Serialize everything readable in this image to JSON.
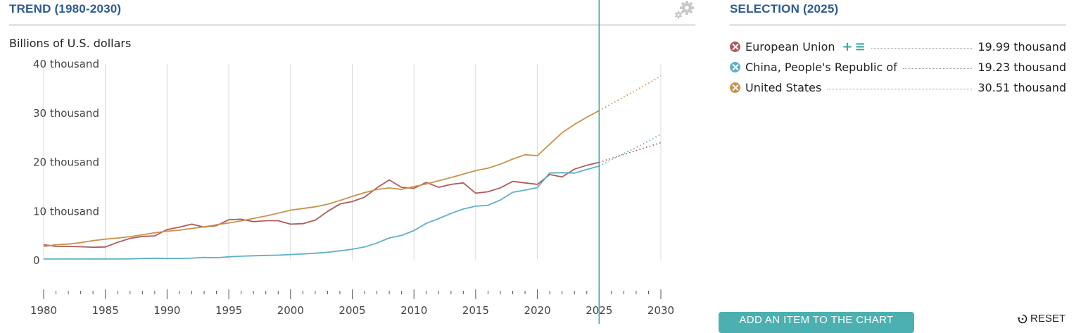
{
  "header": {
    "trend_title": "TREND (1980-2030)",
    "selection_title": "SELECTION (2025)",
    "unit_label": "Billions of U.S. dollars"
  },
  "controls": {
    "add_item_label": "ADD AN ITEM TO THE CHART",
    "reset_label": "RESET",
    "add_icon": "+",
    "list_icon": "≡"
  },
  "legend": [
    {
      "name": "European Union",
      "value": "19.99 thousand",
      "color": "#b05a5a",
      "has_tools": true
    },
    {
      "name": "China, People's Republic of",
      "value": "19.23 thousand",
      "color": "#5eb0c8",
      "has_tools": false
    },
    {
      "name": "United States",
      "value": "30.51 thousand",
      "color": "#c9924a",
      "has_tools": false
    }
  ],
  "chart_data": {
    "type": "line",
    "xlabel": "",
    "ylabel": "Billions of U.S. dollars",
    "xlim": [
      1980,
      2030
    ],
    "ylim": [
      0,
      40000
    ],
    "y_ticks": [
      0,
      10000,
      20000,
      30000,
      40000
    ],
    "y_tick_labels": [
      "0",
      "10 thousand",
      "20 thousand",
      "30 thousand",
      "40 thousand"
    ],
    "x_ticks": [
      1980,
      1985,
      1990,
      1995,
      2000,
      2005,
      2010,
      2015,
      2020,
      2025,
      2030
    ],
    "x_tick_labels": [
      "1980",
      "1985",
      "1990",
      "1995",
      "2000",
      "2005",
      "2010",
      "2015",
      "2020",
      "2025",
      "2030"
    ],
    "selected_year": 2025,
    "projection_from": 2025,
    "grid": "vertical",
    "series": [
      {
        "name": "European Union",
        "color": "#b05a5a",
        "x": [
          1980,
          1981,
          1982,
          1983,
          1984,
          1985,
          1986,
          1987,
          1988,
          1989,
          1990,
          1991,
          1992,
          1993,
          1994,
          1995,
          1996,
          1997,
          1998,
          1999,
          2000,
          2001,
          2002,
          2003,
          2004,
          2005,
          2006,
          2007,
          2008,
          2009,
          2010,
          2011,
          2012,
          2013,
          2014,
          2015,
          2016,
          2017,
          2018,
          2019,
          2020,
          2021,
          2022,
          2023,
          2024,
          2025,
          2026,
          2027,
          2028,
          2029,
          2030
        ],
        "values": [
          3200,
          2900,
          2850,
          2800,
          2700,
          2750,
          3700,
          4500,
          4900,
          5000,
          6300,
          6800,
          7400,
          6800,
          7100,
          8300,
          8400,
          7900,
          8100,
          8100,
          7400,
          7500,
          8200,
          10000,
          11500,
          12000,
          12900,
          14800,
          16400,
          14900,
          14700,
          15900,
          14900,
          15500,
          15800,
          13700,
          14000,
          14800,
          16100,
          15800,
          15500,
          17500,
          17000,
          18600,
          19400,
          19990,
          20800,
          21600,
          22400,
          23200,
          24000
        ]
      },
      {
        "name": "China, People's Republic of",
        "color": "#5eb0c8",
        "x": [
          1980,
          1981,
          1982,
          1983,
          1984,
          1985,
          1986,
          1987,
          1988,
          1989,
          1990,
          1991,
          1992,
          1993,
          1994,
          1995,
          1996,
          1997,
          1998,
          1999,
          2000,
          2001,
          2002,
          2003,
          2004,
          2005,
          2006,
          2007,
          2008,
          2009,
          2010,
          2011,
          2012,
          2013,
          2014,
          2015,
          2016,
          2017,
          2018,
          2019,
          2020,
          2021,
          2022,
          2023,
          2024,
          2025,
          2026,
          2027,
          2028,
          2029,
          2030
        ],
        "values": [
          300,
          300,
          300,
          300,
          320,
          310,
          300,
          330,
          400,
          460,
          400,
          410,
          490,
          620,
          560,
          740,
          870,
          960,
          1030,
          1090,
          1210,
          1340,
          1470,
          1660,
          1960,
          2290,
          2750,
          3550,
          4590,
          5100,
          6090,
          7550,
          8530,
          9570,
          10480,
          11060,
          11230,
          12310,
          13890,
          14340,
          14860,
          17820,
          17880,
          17790,
          18530,
          19230,
          20500,
          21800,
          23000,
          24300,
          25700
        ]
      },
      {
        "name": "United States",
        "color": "#c9924a",
        "x": [
          1980,
          1981,
          1982,
          1983,
          1984,
          1985,
          1986,
          1987,
          1988,
          1989,
          1990,
          1991,
          1992,
          1993,
          1994,
          1995,
          1996,
          1997,
          1998,
          1999,
          2000,
          2001,
          2002,
          2003,
          2004,
          2005,
          2006,
          2007,
          2008,
          2009,
          2010,
          2011,
          2012,
          2013,
          2014,
          2015,
          2016,
          2017,
          2018,
          2019,
          2020,
          2021,
          2022,
          2023,
          2024,
          2025,
          2026,
          2027,
          2028,
          2029,
          2030
        ],
        "values": [
          2860,
          3210,
          3340,
          3630,
          4040,
          4340,
          4580,
          4860,
          5240,
          5640,
          5960,
          6160,
          6520,
          6860,
          7290,
          7640,
          8070,
          8580,
          9060,
          9630,
          10250,
          10580,
          10940,
          11460,
          12220,
          13040,
          13820,
          14470,
          14770,
          14480,
          15050,
          15600,
          16250,
          16880,
          17610,
          18300,
          18800,
          19610,
          20660,
          21540,
          21350,
          23680,
          26010,
          27720,
          29180,
          30510,
          31900,
          33300,
          34700,
          36100,
          37600
        ]
      }
    ]
  }
}
